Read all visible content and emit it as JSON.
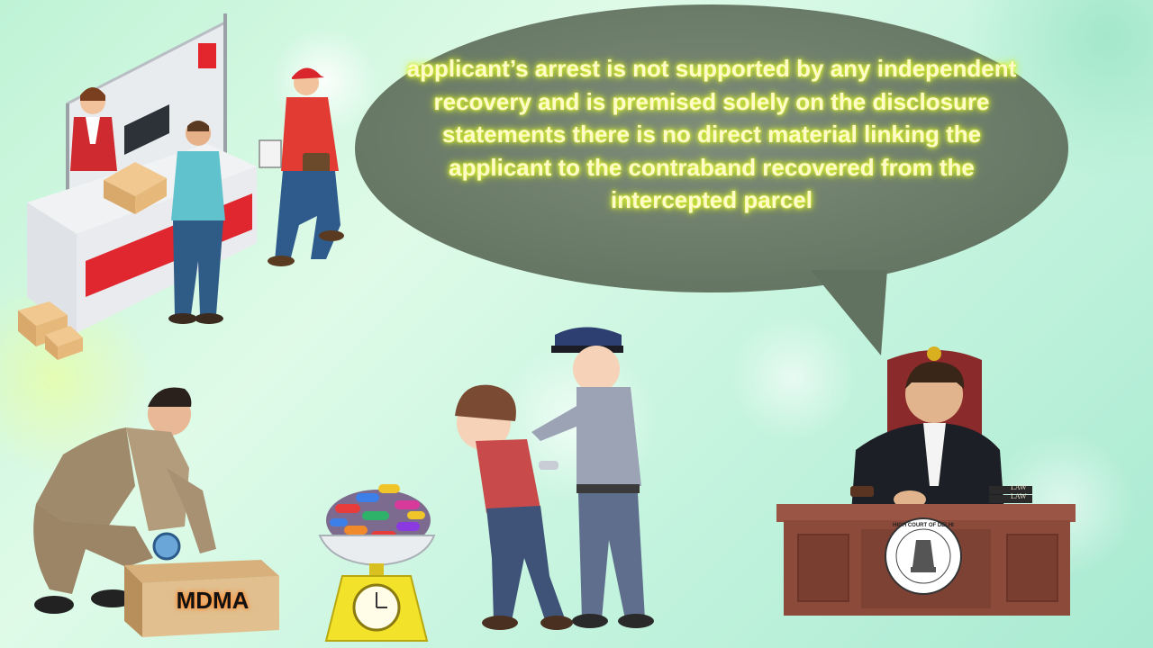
{
  "speech_bubble": {
    "text": "applicant’s arrest is not supported by any independent recovery and is premised solely on the disclosure statements there is no direct material linking the applicant to the contraband recovered from the intercepted parcel"
  },
  "parcel_box": {
    "label": "MDMA"
  },
  "court_emblem": {
    "text": "HIGH COURT OF DELHI"
  },
  "law_books": {
    "label": "LAW"
  },
  "colors": {
    "bubble_fill": "#6f7f6c",
    "bubble_text": "#fffbc8",
    "text_glow": "#e6ff3c",
    "desk_wood": "#8b4a3a",
    "chair_red": "#8a2a2a",
    "counter_red": "#e0262e",
    "scale_yellow": "#f2e22a"
  }
}
